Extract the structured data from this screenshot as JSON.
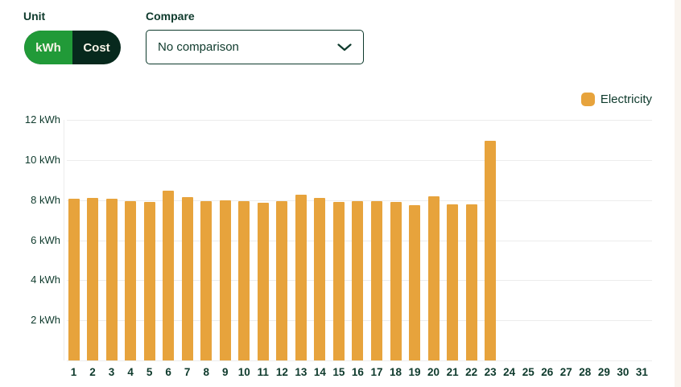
{
  "controls": {
    "unit_label": "Unit",
    "unit_options": [
      {
        "label": "kWh",
        "selected": true
      },
      {
        "label": "Cost",
        "selected": false
      }
    ],
    "compare_label": "Compare",
    "compare_value": "No comparison"
  },
  "legend": {
    "label": "Electricity",
    "color": "#e7a33c"
  },
  "chart_data": {
    "type": "bar",
    "title": "",
    "xlabel": "",
    "ylabel": "kWh",
    "categories": [
      1,
      2,
      3,
      4,
      5,
      6,
      7,
      8,
      9,
      10,
      11,
      12,
      13,
      14,
      15,
      16,
      17,
      18,
      19,
      20,
      21,
      22,
      23,
      24,
      25,
      26,
      27,
      28,
      29,
      30,
      31
    ],
    "series": [
      {
        "name": "Electricity",
        "color": "#e7a33c",
        "values": [
          8.05,
          8.1,
          8.05,
          7.95,
          7.9,
          8.45,
          8.15,
          7.95,
          8.0,
          7.95,
          7.85,
          7.95,
          8.25,
          8.1,
          7.9,
          7.95,
          7.95,
          7.9,
          7.75,
          8.2,
          7.8,
          7.8,
          10.95,
          null,
          null,
          null,
          null,
          null,
          null,
          null,
          null
        ]
      }
    ],
    "ylim": [
      0,
      12
    ],
    "y_ticks": [
      2,
      4,
      6,
      8,
      10,
      12
    ],
    "y_tick_suffix": " kWh",
    "grid": true,
    "legend_position": "top-right"
  },
  "colors": {
    "bar": "#e7a33c",
    "toggle_selected": "#219a38",
    "toggle_bg": "#07291d",
    "toggle_text": "#f7f3e7",
    "text": "#0e3a2c",
    "gridline": "#ececec"
  }
}
